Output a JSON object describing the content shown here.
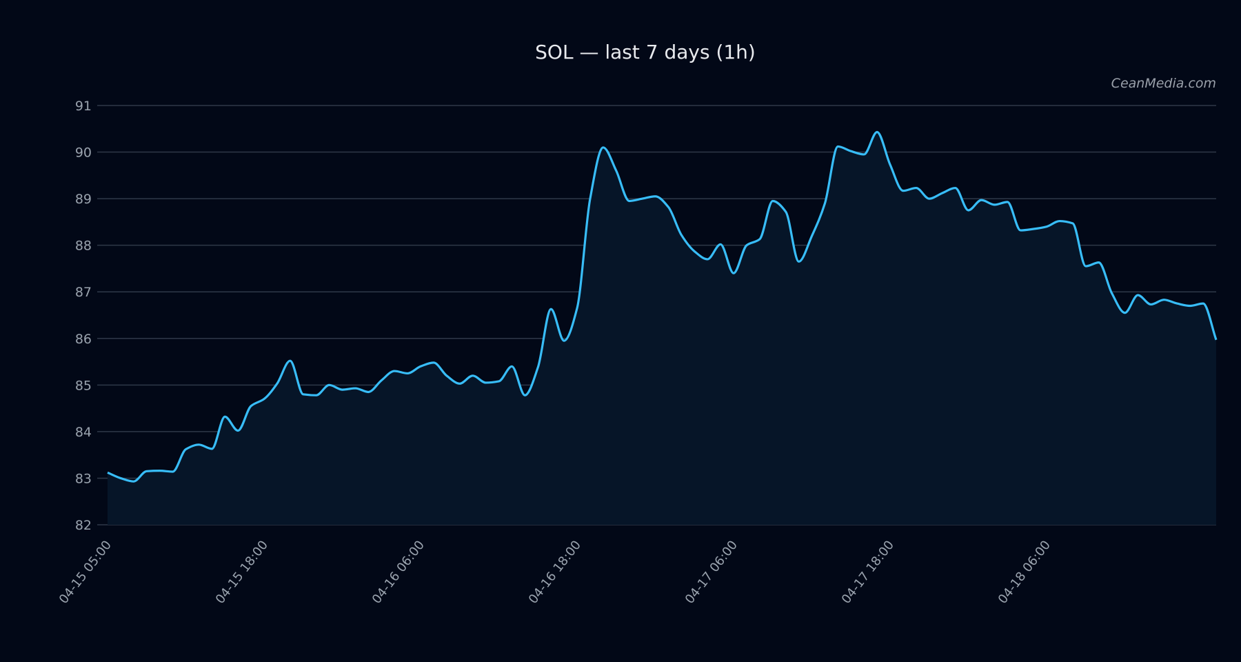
{
  "chart_data": {
    "type": "area",
    "title": "SOL — last 7 days (1h)",
    "watermark": "CeanMedia.com",
    "xlabel": "",
    "ylabel": "",
    "ylim": [
      82,
      91
    ],
    "yticks": [
      82,
      83,
      84,
      85,
      86,
      87,
      88,
      89,
      90,
      91
    ],
    "grid": true,
    "colors": {
      "background": "#020817",
      "line": "#38bdf8",
      "fill": "#061528",
      "grid": "#2f3848"
    },
    "xticks": [
      {
        "index": 0,
        "label": "04-15 05:00"
      },
      {
        "index": 12,
        "label": "04-15 18:00"
      },
      {
        "index": 24,
        "label": "04-16 06:00"
      },
      {
        "index": 36,
        "label": "04-16 18:00"
      },
      {
        "index": 48,
        "label": "04-17 06:00"
      },
      {
        "index": 60,
        "label": "04-17 18:00"
      },
      {
        "index": 72,
        "label": "04-18 06:00"
      }
    ],
    "values": [
      83.12,
      83.0,
      82.93,
      83.15,
      83.16,
      83.14,
      83.62,
      83.72,
      83.63,
      84.32,
      84.02,
      84.55,
      84.7,
      85.03,
      85.52,
      84.8,
      84.78,
      85.0,
      84.9,
      84.93,
      84.85,
      85.1,
      85.3,
      85.25,
      85.4,
      85.48,
      85.2,
      85.03,
      85.2,
      85.05,
      85.08,
      85.4,
      84.78,
      85.38,
      86.63,
      85.95,
      86.65,
      89.0,
      90.1,
      89.6,
      88.95,
      89.0,
      89.05,
      88.82,
      88.22,
      87.87,
      87.7,
      88.02,
      87.4,
      88.0,
      88.13,
      88.95,
      88.72,
      87.65,
      88.2,
      88.9,
      90.12,
      90.02,
      89.95,
      90.43,
      89.73,
      89.17,
      89.23,
      89.0,
      89.12,
      89.23,
      88.75,
      88.97,
      88.87,
      88.93,
      88.32,
      88.35,
      88.4,
      88.52,
      88.47,
      87.55,
      87.63,
      86.97,
      86.55,
      86.93,
      86.73,
      86.83,
      86.75,
      86.7,
      86.75,
      85.97
    ]
  }
}
